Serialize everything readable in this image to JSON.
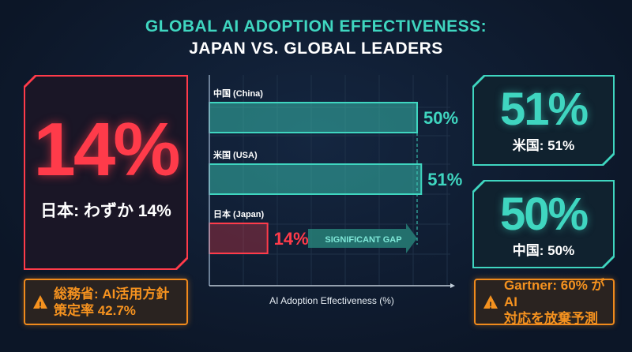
{
  "title": {
    "line1": "GLOBAL AI ADOPTION EFFECTIVENESS:",
    "line2": "JAPAN VS. GLOBAL LEADERS"
  },
  "left_card": {
    "value": "14%",
    "label": "日本: わずか 14%",
    "color": "#ff3b4a"
  },
  "right_cards": [
    {
      "value": "51%",
      "label": "米国: 51%"
    },
    {
      "value": "50%",
      "label": "中国: 50%"
    }
  ],
  "warnings": [
    {
      "icon": "warning-icon",
      "line1": "総務省: AI活用方針",
      "line2": "策定率 42.7%"
    },
    {
      "icon": "warning-icon",
      "line1": "Gartner: 60% がAI",
      "line2": "対応を放棄予測"
    }
  ],
  "chart_data": {
    "type": "bar",
    "orientation": "horizontal",
    "categories": [
      "中国 (China)",
      "米国 (USA)",
      "日本 (Japan)"
    ],
    "values": [
      50,
      51,
      14
    ],
    "data_labels": [
      "50%",
      "51%",
      "14%"
    ],
    "colors": [
      "#3fd6c0",
      "#3fd6c0",
      "#ff3b4a"
    ],
    "xlabel": "AI Adoption Effectiveness (%)",
    "grid": true,
    "annotation": "SIGNIFICANT GAP"
  },
  "colors": {
    "accent": "#3fd6c0",
    "alert": "#ff3b4a",
    "warning": "#f5921f",
    "background": "#0e1a2d"
  }
}
